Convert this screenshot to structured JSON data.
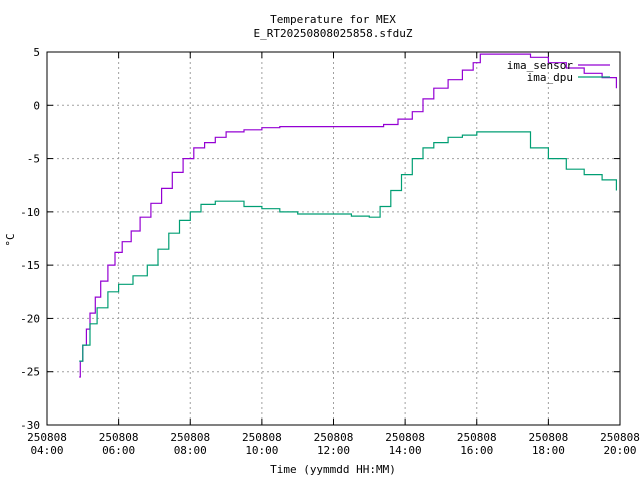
{
  "chart_data": {
    "type": "line",
    "title": "Temperature for MEX",
    "subtitle": "E_RT20250808025858.sfduZ",
    "xlabel": "Time (yymmdd HH:MM)",
    "ylabel": "°C",
    "x_range_hours": [
      4,
      20
    ],
    "ylim": [
      -30,
      5
    ],
    "yticks": [
      5,
      0,
      -5,
      -10,
      -15,
      -20,
      -25,
      -30
    ],
    "xticks": [
      {
        "hour": 4,
        "date": "250808",
        "time": "04:00"
      },
      {
        "hour": 6,
        "date": "250808",
        "time": "06:00"
      },
      {
        "hour": 8,
        "date": "250808",
        "time": "08:00"
      },
      {
        "hour": 10,
        "date": "250808",
        "time": "10:00"
      },
      {
        "hour": 12,
        "date": "250808",
        "time": "12:00"
      },
      {
        "hour": 14,
        "date": "250808",
        "time": "14:00"
      },
      {
        "hour": 16,
        "date": "250808",
        "time": "16:00"
      },
      {
        "hour": 18,
        "date": "250808",
        "time": "18:00"
      },
      {
        "hour": 20,
        "date": "250808",
        "time": "20:00"
      }
    ],
    "grid": true,
    "legend_position": "top-right",
    "series": [
      {
        "name": "ima_sensor",
        "color": "#9400d3",
        "x": [
          4.9,
          4.93,
          5.0,
          5.1,
          5.2,
          5.35,
          5.5,
          5.7,
          5.9,
          6.1,
          6.35,
          6.6,
          6.9,
          7.2,
          7.5,
          7.8,
          8.1,
          8.4,
          8.7,
          9.0,
          9.5,
          10.0,
          10.5,
          11.0,
          12.0,
          13.0,
          13.4,
          13.8,
          14.2,
          14.5,
          14.8,
          15.2,
          15.6,
          15.9,
          16.1,
          16.5,
          17.0,
          17.5,
          18.0,
          18.5,
          19.0,
          19.5,
          19.9
        ],
        "y": [
          -25.5,
          -24.0,
          -22.5,
          -21.0,
          -19.5,
          -18.0,
          -16.5,
          -15.0,
          -13.8,
          -12.8,
          -11.8,
          -10.5,
          -9.2,
          -7.8,
          -6.3,
          -5.0,
          -4.0,
          -3.5,
          -3.0,
          -2.5,
          -2.3,
          -2.1,
          -2.0,
          -2.0,
          -2.0,
          -2.0,
          -1.8,
          -1.3,
          -0.6,
          0.6,
          1.6,
          2.4,
          3.3,
          4.0,
          4.8,
          4.8,
          4.8,
          4.5,
          4.0,
          3.5,
          3.0,
          2.6,
          1.6
        ]
      },
      {
        "name": "ima_dpu",
        "color": "#009e73",
        "x": [
          4.9,
          5.0,
          5.2,
          5.4,
          5.7,
          6.0,
          6.4,
          6.8,
          7.1,
          7.4,
          7.7,
          8.0,
          8.3,
          8.7,
          9.0,
          9.5,
          10.0,
          10.5,
          11.0,
          11.5,
          12.0,
          12.5,
          13.0,
          13.3,
          13.6,
          13.9,
          14.2,
          14.5,
          14.8,
          15.2,
          15.6,
          16.0,
          16.5,
          17.0,
          17.5,
          18.0,
          18.5,
          19.0,
          19.5,
          19.9
        ],
        "y": [
          -24.0,
          -22.5,
          -20.5,
          -19.0,
          -17.5,
          -16.8,
          -16.0,
          -15.0,
          -13.5,
          -12.0,
          -10.8,
          -10.0,
          -9.3,
          -9.0,
          -9.0,
          -9.5,
          -9.7,
          -10.0,
          -10.2,
          -10.2,
          -10.2,
          -10.4,
          -10.5,
          -9.5,
          -8.0,
          -6.5,
          -5.0,
          -4.0,
          -3.5,
          -3.0,
          -2.8,
          -2.5,
          -2.5,
          -2.5,
          -4.0,
          -5.0,
          -6.0,
          -6.5,
          -7.0,
          -8.0
        ]
      }
    ]
  }
}
